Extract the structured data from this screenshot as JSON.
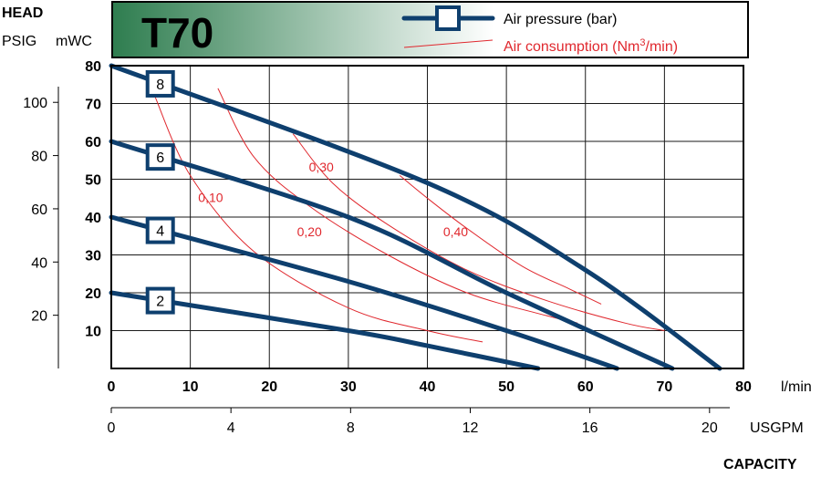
{
  "header": {
    "head_label": "HEAD",
    "psig_label": "PSIG",
    "mwc_label": "mWC",
    "model": "T70",
    "gradient_start": "#2e7d4f",
    "gradient_end": "#ffffff"
  },
  "legend": {
    "pressure_label": "Air pressure (bar)",
    "consumption_label_prefix": "Air consumption (Nm",
    "consumption_label_sup": "3",
    "consumption_label_suffix": "/min)"
  },
  "axes": {
    "x_unit": "l/min",
    "x2_unit": "USGPM",
    "x_caption": "CAPACITY"
  },
  "chart_data": {
    "type": "line",
    "title": "T70",
    "xlabel": "CAPACITY",
    "x_unit": "l/min",
    "x_ticks": [
      "0",
      "10",
      "20",
      "30",
      "40",
      "50",
      "60",
      "70",
      "80"
    ],
    "xlim": [
      0,
      80
    ],
    "y_unit": "mWC",
    "y_ticks": [
      "10",
      "20",
      "30",
      "40",
      "50",
      "60",
      "70",
      "80"
    ],
    "ylim": [
      0,
      80
    ],
    "psig_ticks": [
      "20",
      "40",
      "60",
      "80",
      "100"
    ],
    "usgpm_ticks": [
      "0",
      "4",
      "8",
      "12",
      "16",
      "20"
    ],
    "grid": true,
    "colors": {
      "pressure": "#0e3f6e",
      "consumption": "#e0282e"
    },
    "series": [
      {
        "name": "8",
        "kind": "air_pressure_bar",
        "points": [
          [
            0,
            80
          ],
          [
            40,
            49
          ],
          [
            60,
            26
          ],
          [
            77,
            0
          ]
        ]
      },
      {
        "name": "6",
        "kind": "air_pressure_bar",
        "points": [
          [
            0,
            60
          ],
          [
            30,
            40
          ],
          [
            50,
            20
          ],
          [
            71,
            0
          ]
        ]
      },
      {
        "name": "4",
        "kind": "air_pressure_bar",
        "points": [
          [
            0,
            40
          ],
          [
            30,
            23
          ],
          [
            50,
            10
          ],
          [
            64,
            0
          ]
        ]
      },
      {
        "name": "2",
        "kind": "air_pressure_bar",
        "points": [
          [
            0,
            20
          ],
          [
            30,
            10
          ],
          [
            40,
            6
          ],
          [
            54,
            0
          ]
        ]
      }
    ],
    "consumption_series": [
      {
        "name": "0,10",
        "kind": "air_consumption_nm3_min",
        "points": [
          [
            5.5,
            72
          ],
          [
            10,
            51
          ],
          [
            18,
            31
          ],
          [
            30,
            16
          ],
          [
            40,
            10
          ],
          [
            47,
            7
          ]
        ]
      },
      {
        "name": "0,20",
        "kind": "air_consumption_nm3_min",
        "points": [
          [
            13.5,
            74
          ],
          [
            18,
            56
          ],
          [
            25,
            43
          ],
          [
            35,
            30
          ],
          [
            45,
            20
          ],
          [
            55,
            14
          ],
          [
            59,
            12
          ]
        ]
      },
      {
        "name": "0,30",
        "kind": "air_consumption_nm3_min",
        "points": [
          [
            23,
            62
          ],
          [
            28,
            49
          ],
          [
            35,
            38
          ],
          [
            45,
            26
          ],
          [
            55,
            18
          ],
          [
            65,
            12
          ],
          [
            70,
            10
          ]
        ]
      },
      {
        "name": "0,40",
        "kind": "air_consumption_nm3_min",
        "points": [
          [
            36.5,
            51
          ],
          [
            40,
            45
          ],
          [
            45,
            37
          ],
          [
            52,
            27
          ],
          [
            58,
            21
          ],
          [
            62,
            17
          ]
        ]
      }
    ],
    "consumption_label_positions": [
      {
        "name": "0,10",
        "x": 11,
        "y": 44
      },
      {
        "name": "0,20",
        "x": 23.5,
        "y": 35
      },
      {
        "name": "0,30",
        "x": 25,
        "y": 52
      },
      {
        "name": "0,40",
        "x": 42,
        "y": 35
      }
    ],
    "marker_positions": [
      {
        "name": "8",
        "x": 6.2
      },
      {
        "name": "6",
        "x": 6.2
      },
      {
        "name": "4",
        "x": 6.2
      },
      {
        "name": "2",
        "x": 6.2
      }
    ]
  }
}
